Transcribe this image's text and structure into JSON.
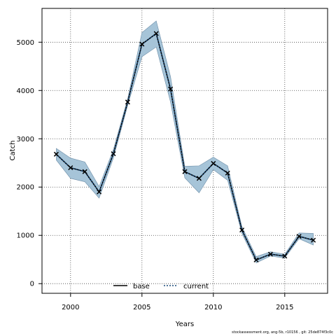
{
  "chart_data": {
    "type": "line",
    "xlabel": "Years",
    "ylabel": "Catch",
    "xlim": [
      1998,
      2018
    ],
    "ylim": [
      -200,
      5700
    ],
    "xticks": [
      2000,
      2005,
      2010,
      2015
    ],
    "yticks": [
      0,
      1000,
      2000,
      3000,
      4000,
      5000
    ],
    "grid": true,
    "legend_position": "bottom-center",
    "x": [
      1999,
      2000,
      2001,
      2002,
      2003,
      2004,
      2005,
      2006,
      2007,
      2008,
      2009,
      2010,
      2011,
      2012,
      2013,
      2014,
      2015,
      2016,
      2017
    ],
    "series": [
      {
        "name": "base",
        "style": "solid",
        "color": "#000000",
        "values": [
          2680,
          2400,
          2320,
          1900,
          2690,
          3760,
          4960,
          5180,
          4030,
          2320,
          2180,
          2490,
          2290,
          1110,
          490,
          610,
          570,
          980,
          900
        ]
      },
      {
        "name": "current",
        "style": "dotted",
        "color": "#1a4a7a",
        "marker": "x",
        "values": [
          2680,
          2400,
          2320,
          1900,
          2690,
          3760,
          4960,
          5180,
          4030,
          2320,
          2180,
          2490,
          2290,
          1110,
          490,
          610,
          570,
          980,
          900
        ]
      }
    ],
    "interval": {
      "color": "#a6c4d8",
      "edge_color": "#6e8ea8",
      "upper": [
        2800,
        2600,
        2520,
        2010,
        2780,
        3830,
        5200,
        5440,
        4290,
        2430,
        2440,
        2620,
        2440,
        1180,
        560,
        660,
        610,
        1050,
        1040
      ],
      "lower": [
        2560,
        2180,
        2110,
        1770,
        2600,
        3690,
        4700,
        4900,
        3760,
        2190,
        1880,
        2360,
        2140,
        1040,
        430,
        570,
        530,
        930,
        800
      ]
    }
  },
  "footer": {
    "text": "stockassessment.org, ang-5b, r10156 , git: 25de874f3c0c"
  }
}
